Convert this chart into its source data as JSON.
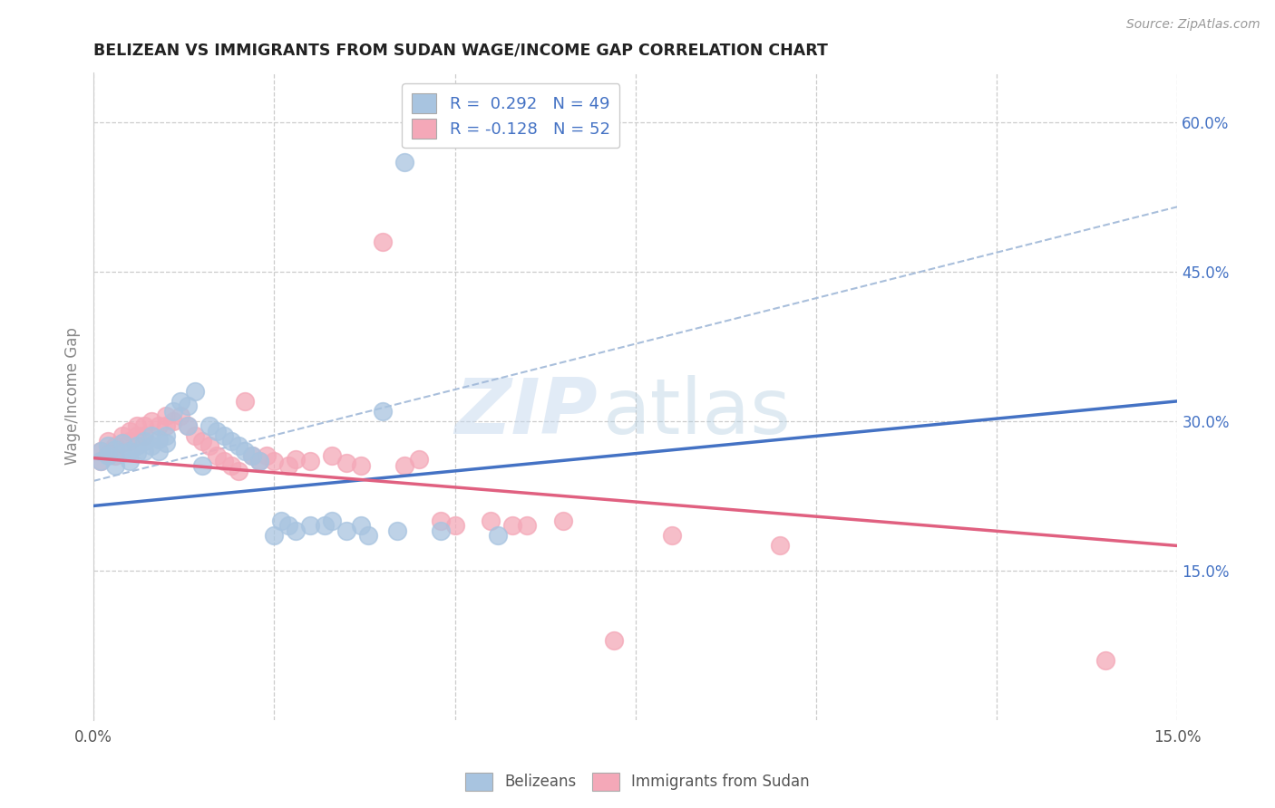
{
  "title": "BELIZEAN VS IMMIGRANTS FROM SUDAN WAGE/INCOME GAP CORRELATION CHART",
  "source": "Source: ZipAtlas.com",
  "ylabel": "Wage/Income Gap",
  "background_color": "#ffffff",
  "watermark_zip": "ZIP",
  "watermark_atlas": "atlas",
  "blue_scatter_color": "#a8c4e0",
  "pink_scatter_color": "#f4a8b8",
  "blue_line_color": "#4472c4",
  "pink_line_color": "#e06080",
  "dashed_line_color": "#a0b8d8",
  "grid_color": "#cccccc",
  "right_tick_color": "#4472c4",
  "xmin": 0.0,
  "xmax": 0.15,
  "ymin": 0.0,
  "ymax": 0.65,
  "blue_line_x0": 0.0,
  "blue_line_y0": 0.215,
  "blue_line_x1": 0.15,
  "blue_line_y1": 0.32,
  "pink_line_x0": 0.0,
  "pink_line_y0": 0.263,
  "pink_line_x1": 0.15,
  "pink_line_y1": 0.175,
  "dash_line_x0": 0.0,
  "dash_line_y0": 0.24,
  "dash_line_x1": 0.15,
  "dash_line_y1": 0.515,
  "belizeans_x": [
    0.001,
    0.001,
    0.002,
    0.002,
    0.003,
    0.003,
    0.004,
    0.004,
    0.005,
    0.005,
    0.006,
    0.006,
    0.007,
    0.007,
    0.008,
    0.008,
    0.009,
    0.009,
    0.01,
    0.01,
    0.011,
    0.012,
    0.013,
    0.013,
    0.014,
    0.015,
    0.016,
    0.017,
    0.018,
    0.019,
    0.02,
    0.021,
    0.022,
    0.023,
    0.025,
    0.026,
    0.027,
    0.028,
    0.03,
    0.032,
    0.033,
    0.035,
    0.037,
    0.038,
    0.04,
    0.042,
    0.043,
    0.048,
    0.056
  ],
  "belizeans_y": [
    0.27,
    0.26,
    0.275,
    0.265,
    0.272,
    0.255,
    0.268,
    0.278,
    0.27,
    0.26,
    0.275,
    0.268,
    0.28,
    0.27,
    0.285,
    0.275,
    0.282,
    0.27,
    0.285,
    0.278,
    0.31,
    0.32,
    0.315,
    0.295,
    0.33,
    0.255,
    0.295,
    0.29,
    0.285,
    0.28,
    0.275,
    0.27,
    0.265,
    0.26,
    0.185,
    0.2,
    0.195,
    0.19,
    0.195,
    0.195,
    0.2,
    0.19,
    0.195,
    0.185,
    0.31,
    0.19,
    0.56,
    0.19,
    0.185
  ],
  "sudanese_x": [
    0.001,
    0.001,
    0.002,
    0.002,
    0.003,
    0.003,
    0.004,
    0.004,
    0.005,
    0.005,
    0.006,
    0.006,
    0.007,
    0.007,
    0.008,
    0.009,
    0.01,
    0.01,
    0.011,
    0.012,
    0.013,
    0.014,
    0.015,
    0.016,
    0.017,
    0.018,
    0.019,
    0.02,
    0.021,
    0.022,
    0.023,
    0.024,
    0.025,
    0.027,
    0.028,
    0.03,
    0.033,
    0.035,
    0.037,
    0.04,
    0.043,
    0.045,
    0.048,
    0.05,
    0.055,
    0.058,
    0.06,
    0.065,
    0.072,
    0.08,
    0.095,
    0.14
  ],
  "sudanese_y": [
    0.27,
    0.26,
    0.28,
    0.268,
    0.275,
    0.265,
    0.285,
    0.278,
    0.29,
    0.28,
    0.295,
    0.285,
    0.295,
    0.285,
    0.3,
    0.295,
    0.305,
    0.295,
    0.3,
    0.305,
    0.295,
    0.285,
    0.28,
    0.275,
    0.265,
    0.26,
    0.255,
    0.25,
    0.32,
    0.265,
    0.26,
    0.265,
    0.26,
    0.255,
    0.262,
    0.26,
    0.265,
    0.258,
    0.255,
    0.48,
    0.255,
    0.262,
    0.2,
    0.195,
    0.2,
    0.195,
    0.195,
    0.2,
    0.08,
    0.185,
    0.175,
    0.06
  ]
}
